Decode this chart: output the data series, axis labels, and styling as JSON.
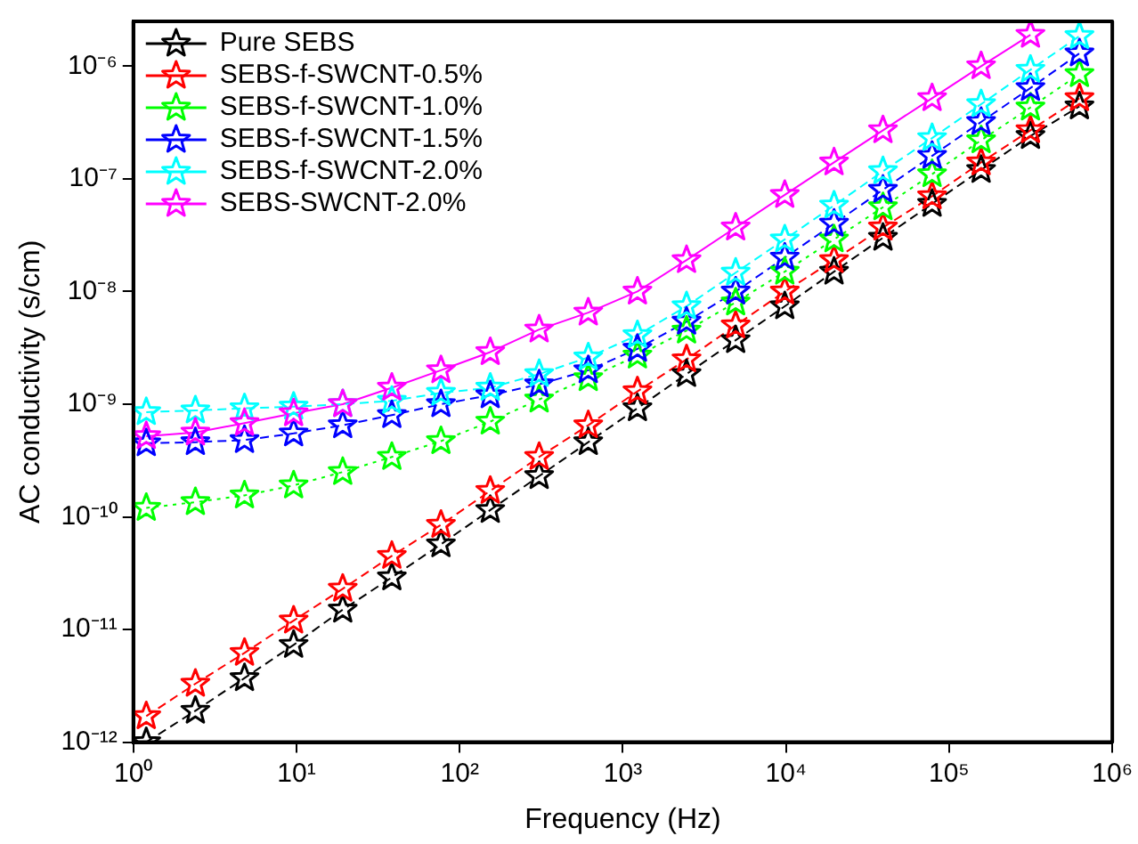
{
  "chart_data": {
    "type": "line",
    "xlabel": "Frequency (Hz)",
    "ylabel": "AC conductivity (s/cm)",
    "log": "xy",
    "grid": false,
    "legend": "top left",
    "marker": "star",
    "x": [
      1.2,
      2.4,
      4.8,
      9.6,
      19.2,
      38.4,
      76.8,
      154,
      307,
      614,
      1229,
      2458,
      4915,
      9830,
      19700,
      39300,
      78600,
      157000,
      315000,
      629000
    ],
    "xlim": [
      1,
      1000000
    ],
    "xticks": [
      {
        "value": 1,
        "label": "10⁰"
      },
      {
        "value": 10,
        "label": "10¹"
      },
      {
        "value": 100,
        "label": "10²"
      },
      {
        "value": 1000,
        "label": "10³"
      },
      {
        "value": 10000,
        "label": "10⁴"
      },
      {
        "value": 100000,
        "label": "10⁵"
      },
      {
        "value": 1000000,
        "label": "10⁶"
      }
    ],
    "ylim": [
      1e-12,
      2.5e-06
    ],
    "yticks": [
      {
        "value": 1e-12,
        "label": "10⁻¹²"
      },
      {
        "value": 1e-11,
        "label": "10⁻¹¹"
      },
      {
        "value": 1e-10,
        "label": "10⁻¹⁰"
      },
      {
        "value": 1e-09,
        "label": "10⁻⁹"
      },
      {
        "value": 1e-08,
        "label": "10⁻⁸"
      },
      {
        "value": 1e-07,
        "label": "10⁻⁷"
      },
      {
        "value": 1e-06,
        "label": "10⁻⁶"
      }
    ],
    "series": [
      {
        "name": "Pure SEBS",
        "color": "#000000",
        "line_style": "dashed",
        "values": [
          1e-12,
          1.9e-12,
          3.7e-12,
          7.3e-12,
          1.5e-11,
          2.9e-11,
          5.7e-11,
          1.15e-10,
          2.3e-10,
          4.6e-10,
          9.2e-10,
          1.85e-09,
          3.7e-09,
          7.4e-09,
          1.5e-08,
          3e-08,
          6e-08,
          1.2e-07,
          2.4e-07,
          4.4e-07
        ]
      },
      {
        "name": "SEBS-f-SWCNT-0.5%",
        "color": "#ff0000",
        "line_style": "dashed",
        "values": [
          1.7e-12,
          3.3e-12,
          6.2e-12,
          1.2e-11,
          2.3e-11,
          4.5e-11,
          8.5e-11,
          1.7e-10,
          3.4e-10,
          6.5e-10,
          1.3e-09,
          2.5e-09,
          5e-09,
          1e-08,
          1.9e-08,
          3.7e-08,
          7e-08,
          1.4e-07,
          2.7e-07,
          5.2e-07
        ]
      },
      {
        "name": "SEBS-f-SWCNT-1.0%",
        "color": "#00ff00",
        "line_style": "dotted",
        "values": [
          1.2e-10,
          1.35e-10,
          1.55e-10,
          1.9e-10,
          2.5e-10,
          3.4e-10,
          4.7e-10,
          7e-10,
          1.1e-09,
          1.7e-09,
          2.7e-09,
          4.5e-09,
          8e-09,
          1.5e-08,
          2.9e-08,
          5.6e-08,
          1.1e-07,
          2.2e-07,
          4.3e-07,
          8.5e-07
        ]
      },
      {
        "name": "SEBS-f-SWCNT-1.5%",
        "color": "#0000ff",
        "line_style": "dashed",
        "values": [
          4.5e-10,
          4.6e-10,
          4.8e-10,
          5.5e-10,
          6.5e-10,
          8e-10,
          1e-09,
          1.2e-09,
          1.5e-09,
          2e-09,
          3.1e-09,
          5.4e-09,
          1e-08,
          2e-08,
          4e-08,
          8e-08,
          1.6e-07,
          3.2e-07,
          6.4e-07,
          1.3e-06
        ]
      },
      {
        "name": "SEBS-f-SWCNT-2.0%",
        "color": "#00ffff",
        "line_style": "dashed",
        "values": [
          8.5e-10,
          8.8e-10,
          9.2e-10,
          9.5e-10,
          1e-09,
          1.07e-09,
          1.26e-09,
          1.4e-09,
          1.85e-09,
          2.6e-09,
          4.1e-09,
          7.4e-09,
          1.47e-08,
          2.9e-08,
          5.8e-08,
          1.17e-07,
          2.3e-07,
          4.6e-07,
          9.3e-07,
          1.85e-06
        ]
      },
      {
        "name": "SEBS-SWCNT-2.0%",
        "color": "#ff00ff",
        "line_style": "solid",
        "values": [
          5.2e-10,
          5.6e-10,
          6.8e-10,
          8.3e-10,
          1e-09,
          1.4e-09,
          2e-09,
          2.9e-09,
          4.6e-09,
          6.5e-09,
          1e-08,
          1.9e-08,
          3.7e-08,
          7.2e-08,
          1.4e-07,
          2.7e-07,
          5.2e-07,
          1e-06,
          1.9e-06,
          null
        ]
      }
    ]
  }
}
